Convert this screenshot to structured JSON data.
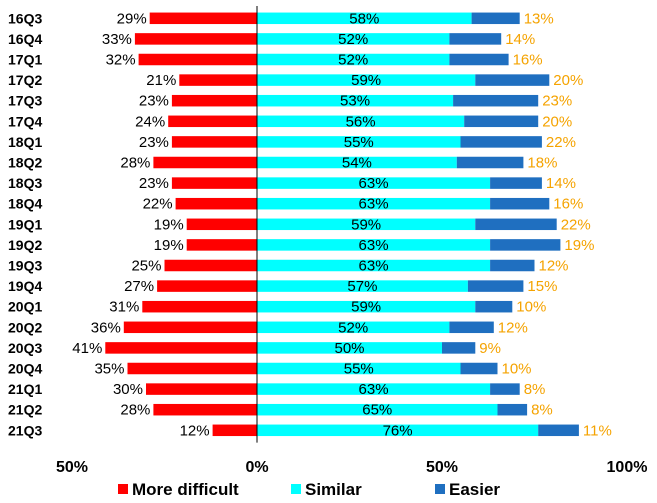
{
  "chart_data": {
    "type": "bar",
    "orientation": "horizontal-diverging",
    "categories": [
      "16Q3",
      "16Q4",
      "17Q1",
      "17Q2",
      "17Q3",
      "17Q4",
      "18Q1",
      "18Q2",
      "18Q3",
      "18Q4",
      "19Q1",
      "19Q2",
      "19Q3",
      "19Q4",
      "20Q1",
      "20Q2",
      "20Q3",
      "20Q4",
      "21Q1",
      "21Q2",
      "21Q3"
    ],
    "series": [
      {
        "name": "More difficult",
        "color": "#ff0000",
        "direction": "negative",
        "values": [
          29,
          33,
          32,
          21,
          23,
          24,
          23,
          28,
          23,
          22,
          19,
          19,
          25,
          27,
          31,
          36,
          41,
          35,
          30,
          28,
          12
        ],
        "labels": [
          "29%",
          "33%",
          "32%",
          "21%",
          "23%",
          "24%",
          "23%",
          "28%",
          "23%",
          "22%",
          "19%",
          "19%",
          "25%",
          "27%",
          "31%",
          "36%",
          "41%",
          "35%",
          "30%",
          "28%",
          "12%"
        ]
      },
      {
        "name": "Similar",
        "color": "#00ffff",
        "direction": "positive",
        "values": [
          58,
          52,
          52,
          59,
          53,
          56,
          55,
          54,
          63,
          63,
          59,
          63,
          63,
          57,
          59,
          52,
          50,
          55,
          63,
          65,
          76
        ],
        "labels": [
          "58%",
          "52%",
          "52%",
          "59%",
          "53%",
          "56%",
          "55%",
          "54%",
          "63%",
          "63%",
          "59%",
          "63%",
          "63%",
          "57%",
          "59%",
          "52%",
          "50%",
          "55%",
          "63%",
          "65%",
          "76%"
        ]
      },
      {
        "name": "Easier",
        "color": "#1f6fc0",
        "direction": "positive",
        "values": [
          13,
          14,
          16,
          20,
          23,
          20,
          22,
          18,
          14,
          16,
          22,
          19,
          12,
          15,
          10,
          12,
          9,
          10,
          8,
          8,
          11
        ],
        "labels": [
          "13%",
          "14%",
          "16%",
          "20%",
          "23%",
          "20%",
          "22%",
          "18%",
          "14%",
          "16%",
          "22%",
          "19%",
          "12%",
          "15%",
          "10%",
          "12%",
          "9%",
          "10%",
          "8%",
          "8%",
          "11%"
        ]
      }
    ],
    "xlim": [
      -50,
      100
    ],
    "xticks": [
      -50,
      0,
      50,
      100
    ],
    "xtick_labels": [
      "50%",
      "0%",
      "50%",
      "100%"
    ],
    "legend_position": "bottom",
    "grid": false,
    "label_colors": {
      "negative": "#000000",
      "middle": "#000000",
      "positive_end": "#f5a300"
    }
  }
}
